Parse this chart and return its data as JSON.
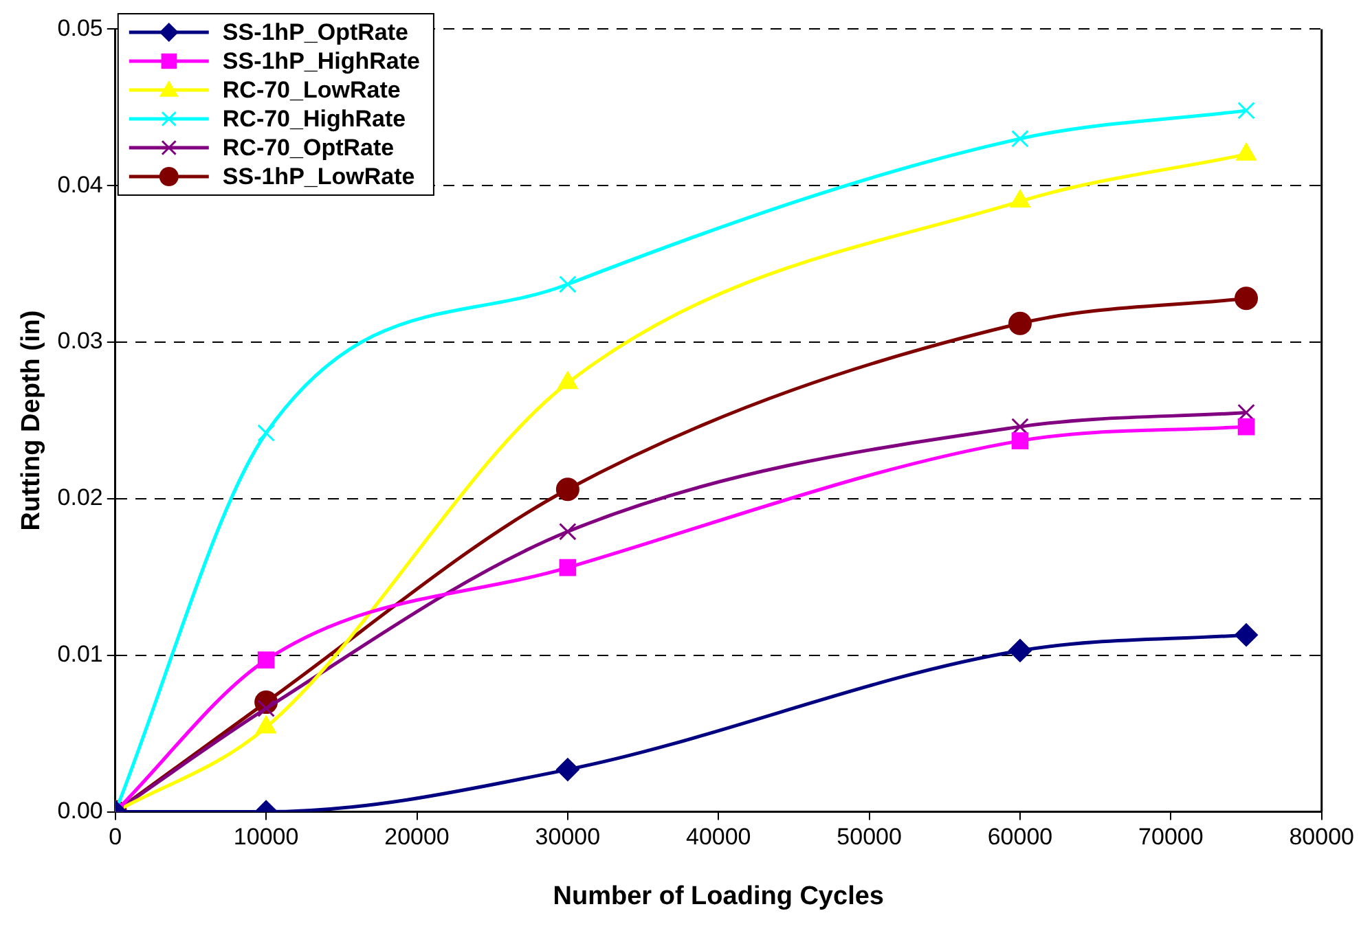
{
  "chart_data": {
    "type": "line",
    "xlabel": "Number of Loading Cycles",
    "ylabel": "Rutting Depth (in)",
    "x": [
      0,
      10000,
      30000,
      60000,
      75000
    ],
    "xlim": [
      0,
      80000
    ],
    "xticks": [
      0,
      10000,
      20000,
      30000,
      40000,
      50000,
      60000,
      70000,
      80000
    ],
    "ylim": [
      0,
      0.05
    ],
    "yticks": [
      {
        "value": 0,
        "label": "0.00"
      },
      {
        "value": 0.01,
        "label": "0.01"
      },
      {
        "value": 0.02,
        "label": "0.02"
      },
      {
        "value": 0.03,
        "label": "0.03"
      },
      {
        "value": 0.04,
        "label": "0.04"
      },
      {
        "value": 0.05,
        "label": "0.05"
      }
    ],
    "grid": "y",
    "legend": "top left",
    "line_style": "solid",
    "series": [
      {
        "name": "SS-1hP_OptRate",
        "color": "#000080",
        "marker": "diamond",
        "values": [
          0,
          0,
          0.0027,
          0.0103,
          0.0113
        ]
      },
      {
        "name": "SS-1hP_HighRate",
        "color": "#ff00ff",
        "marker": "square",
        "values": [
          0,
          0.0097,
          0.0156,
          0.0237,
          0.0246
        ]
      },
      {
        "name": "RC-70_LowRate",
        "color": "#ffff00",
        "marker": "triangle",
        "values": [
          0,
          0.0054,
          0.0274,
          0.039,
          0.042
        ]
      },
      {
        "name": "RC-70_HighRate",
        "color": "#00ffff",
        "marker": "cross",
        "values": [
          0,
          0.0242,
          0.0337,
          0.043,
          0.0448
        ]
      },
      {
        "name": "RC-70_OptRate",
        "color": "#800080",
        "marker": "cross",
        "values": [
          0,
          0.0066,
          0.0179,
          0.0246,
          0.0255
        ]
      },
      {
        "name": "SS-1hP_LowRate",
        "color": "#800000",
        "marker": "circle",
        "values": [
          0,
          0.007,
          0.0206,
          0.0312,
          0.0328
        ]
      }
    ]
  }
}
